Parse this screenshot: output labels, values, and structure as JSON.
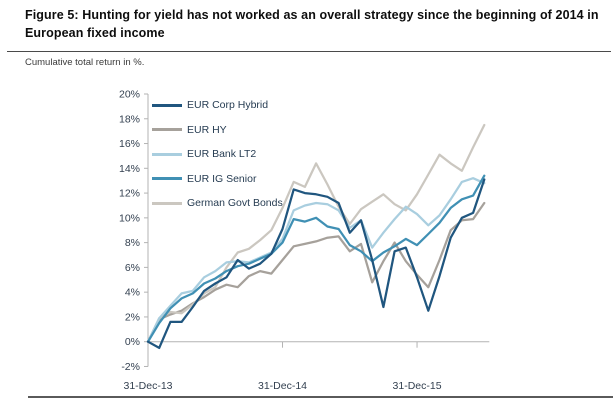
{
  "figure": {
    "title": "Figure 5: Hunting for yield has not worked as an overall strategy since the beginning of 2014 in European fixed income",
    "subtitle": "Cumulative total return in %."
  },
  "chart_data": {
    "type": "line",
    "title": "Figure 5: Hunting for yield has not worked as an overall strategy since the beginning of 2014 in European fixed income",
    "subtitle": "Cumulative total return in %.",
    "x_unit": "months since 31-Dec-13 (monthly points, Dec-13 to Jun-16)",
    "n_points": 31,
    "x_tick_labels": [
      "31-Dec-13",
      "31-Dec-14",
      "31-Dec-15"
    ],
    "x_tick_indices": [
      0,
      12,
      24
    ],
    "ylim": [
      -2,
      20
    ],
    "y_tick_step": 2,
    "y_tick_suffix": "%",
    "grid": "none",
    "legend_position": "top-left-inside",
    "axis_color": "#b3b3b3",
    "tick_label_color": "#323f4f",
    "series": [
      {
        "name": "EUR Corp Hybrid",
        "color": "#20567f",
        "values": [
          0,
          -0.5,
          1.6,
          1.6,
          2.8,
          4.1,
          4.7,
          5.2,
          6.6,
          5.9,
          6.3,
          7.1,
          9.1,
          12.3,
          12.0,
          11.9,
          11.7,
          11.2,
          8.8,
          9.8,
          6.6,
          2.8,
          7.3,
          7.6,
          5.2,
          2.5,
          5.3,
          8.4,
          10.0,
          10.4,
          13.1
        ]
      },
      {
        "name": "EUR HY",
        "color": "#a6a19b",
        "values": [
          0,
          1.8,
          2.2,
          2.5,
          3.1,
          3.6,
          4.2,
          4.6,
          4.4,
          5.3,
          5.7,
          5.5,
          6.6,
          7.7,
          7.9,
          8.1,
          8.4,
          8.5,
          7.3,
          7.9,
          4.8,
          6.5,
          8.0,
          6.5,
          5.4,
          4.4,
          6.6,
          9.0,
          9.8,
          9.9,
          11.2
        ]
      },
      {
        "name": "EUR Bank LT2",
        "color": "#a9cedf",
        "values": [
          0,
          1.9,
          2.9,
          3.9,
          4.1,
          5.2,
          5.7,
          6.4,
          6.5,
          6.4,
          6.8,
          7.2,
          8.3,
          10.6,
          11.0,
          11.2,
          11.1,
          10.6,
          9.2,
          9.8,
          7.6,
          8.8,
          9.9,
          10.9,
          10.3,
          9.4,
          10.2,
          11.5,
          12.9,
          13.2,
          12.8
        ]
      },
      {
        "name": "EUR IG Senior",
        "color": "#4090b4",
        "values": [
          0,
          1.5,
          2.7,
          3.5,
          3.9,
          4.7,
          5.1,
          5.7,
          6.1,
          6.3,
          6.7,
          7.1,
          8.0,
          9.9,
          9.7,
          10.0,
          9.3,
          9.1,
          7.8,
          7.3,
          6.5,
          7.2,
          7.7,
          8.3,
          7.8,
          8.7,
          9.6,
          10.8,
          11.5,
          11.8,
          13.4
        ]
      },
      {
        "name": "German Govt Bonds",
        "color": "#cbc7c0",
        "values": [
          0,
          1.9,
          2.4,
          2.3,
          3.0,
          3.9,
          4.4,
          6.0,
          7.2,
          7.5,
          8.2,
          9.0,
          10.8,
          12.9,
          12.5,
          14.4,
          12.7,
          10.9,
          9.5,
          10.7,
          11.3,
          11.9,
          11.1,
          10.6,
          11.9,
          13.5,
          15.1,
          14.4,
          13.8,
          15.7,
          17.5
        ]
      }
    ],
    "z_order": [
      1,
      4,
      2,
      3,
      0
    ]
  }
}
